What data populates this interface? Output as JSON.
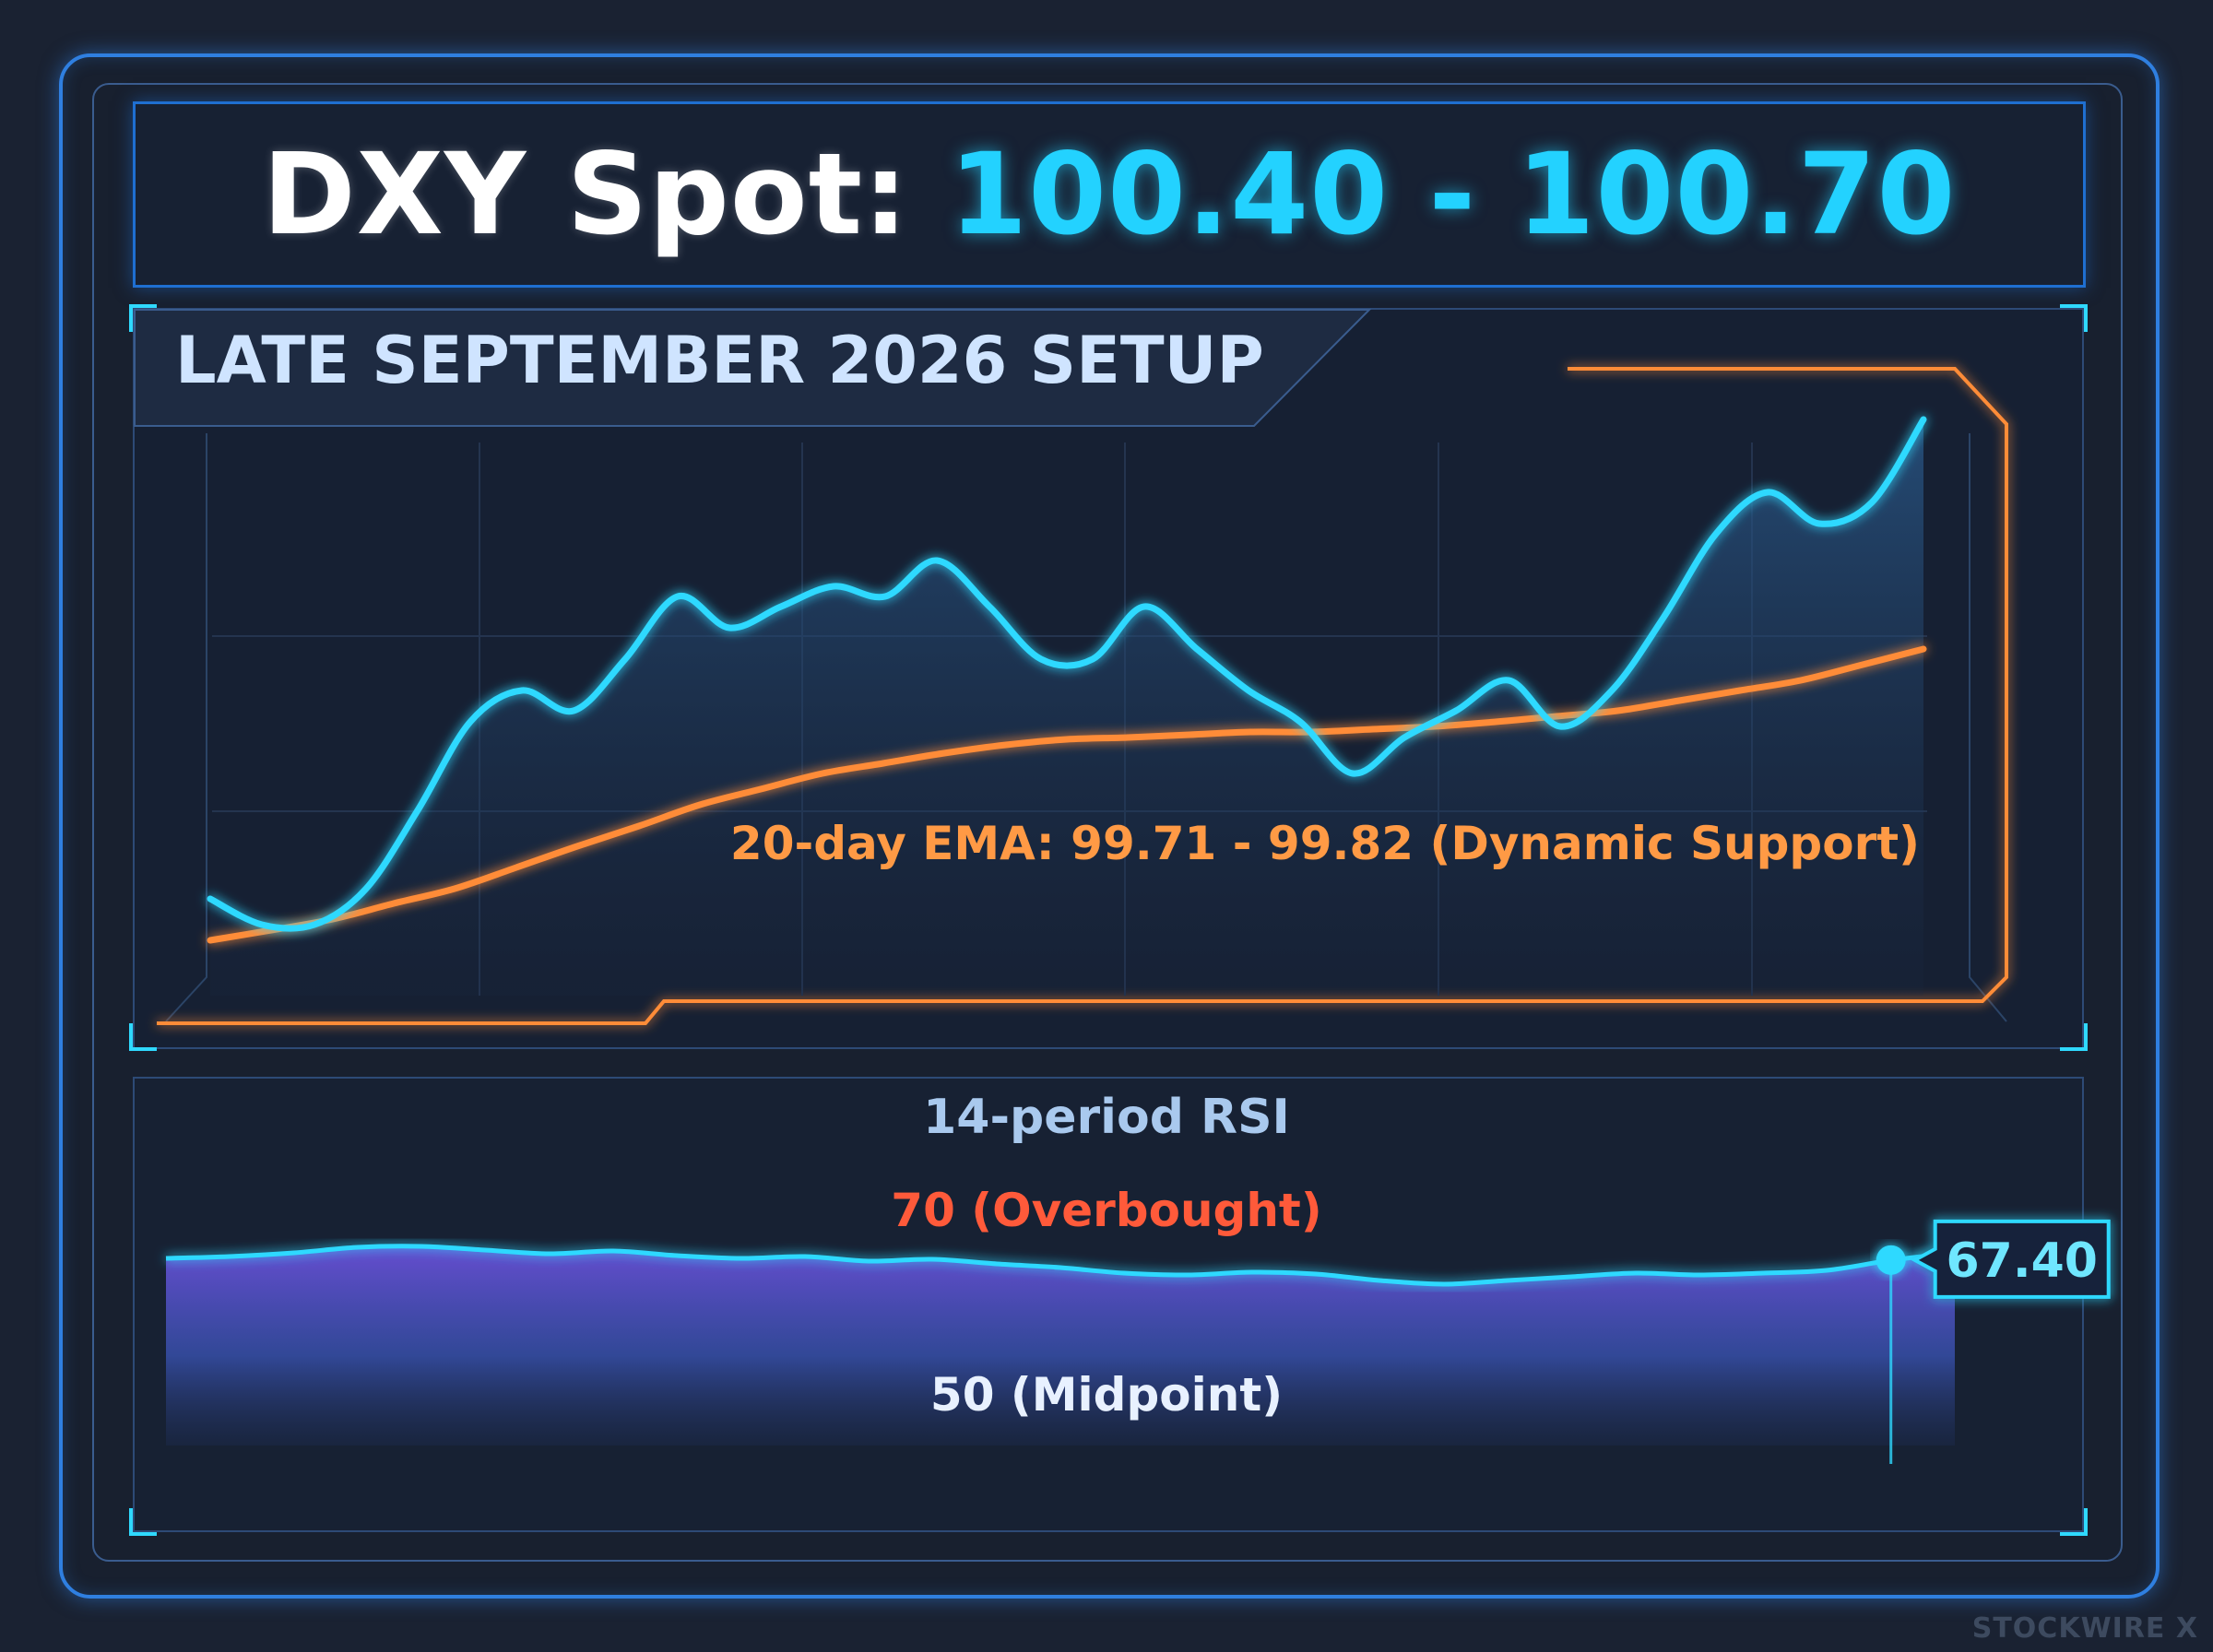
{
  "title": {
    "label": "DXY Spot:",
    "value": "100.40 - 100.70"
  },
  "setup_label": "LATE SEPTEMBER 2026 SETUP",
  "watermark": "STOCKWIRE X",
  "colors": {
    "price": "#2fd9ff",
    "ema": "#ff8c38",
    "overbought": "#ff4b2b",
    "midpoint": "#ffffff",
    "lower": "#7b5cff",
    "frame": "#2f7fe0"
  },
  "chart_data": [
    {
      "type": "line",
      "series": [
        {
          "id": "price",
          "values": [
            0.08,
            0.03,
            0.03,
            0.1,
            0.25,
            0.42,
            0.48,
            0.44,
            0.54,
            0.66,
            0.6,
            0.64,
            0.68,
            0.66,
            0.73,
            0.64,
            0.54,
            0.54,
            0.64,
            0.56,
            0.48,
            0.42,
            0.32,
            0.39,
            0.44,
            0.5,
            0.41,
            0.48,
            0.62,
            0.78,
            0.86,
            0.8,
            0.84,
            1.0
          ]
        },
        {
          "id": "ema",
          "label": "20-day EMA: 99.71 - 99.82 (Dynamic Support)",
          "values": [
            0.0,
            0.02,
            0.04,
            0.07,
            0.1,
            0.14,
            0.18,
            0.22,
            0.26,
            0.29,
            0.32,
            0.34,
            0.36,
            0.375,
            0.385,
            0.39,
            0.395,
            0.4,
            0.4,
            0.405,
            0.41,
            0.42,
            0.43,
            0.44,
            0.46,
            0.48,
            0.5,
            0.53,
            0.56
          ]
        }
      ]
    },
    {
      "type": "area",
      "title": "14-period RSI",
      "ylim": [
        50,
        70
      ],
      "values": [
        67.7,
        68.0,
        68.8,
        69.9,
        70.0,
        69.3,
        68.6,
        69.2,
        68.3,
        67.7,
        68.0,
        67.2,
        67.5,
        66.6,
        66.0,
        65.0,
        64.5,
        65.1,
        64.7,
        63.5,
        62.8,
        63.5,
        64.2,
        64.9,
        64.5,
        64.9,
        65.4,
        67.4,
        68.8
      ],
      "lines": [
        {
          "id": "overbought",
          "value": 70,
          "label": "70 (Overbought)"
        },
        {
          "id": "midpoint",
          "value": 50,
          "label": "50 (Midpoint)"
        }
      ],
      "lower_band": 40,
      "marker": {
        "index": 27,
        "value": 67.4,
        "label": "67.40"
      }
    }
  ]
}
